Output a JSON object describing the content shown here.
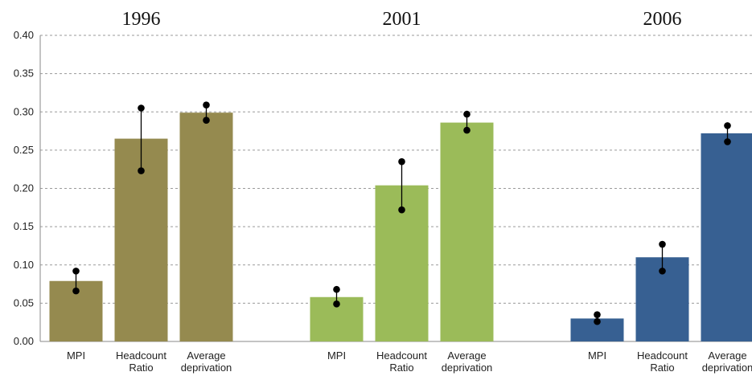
{
  "chart_data": {
    "type": "bar",
    "y_ticks": [
      "0.00",
      "0.05",
      "0.10",
      "0.15",
      "0.20",
      "0.25",
      "0.30",
      "0.35",
      "0.40"
    ],
    "ylim": [
      0,
      0.4
    ],
    "grid": true,
    "groups": [
      {
        "year": "1996",
        "color": "#958A4F",
        "bars": [
          {
            "label": [
              "MPI"
            ],
            "value": 0.079,
            "ci": [
              0.066,
              0.092
            ]
          },
          {
            "label": [
              "Headcount",
              "Ratio"
            ],
            "value": 0.265,
            "ci": [
              0.223,
              0.305
            ]
          },
          {
            "label": [
              "Average",
              "deprivation"
            ],
            "value": 0.299,
            "ci": [
              0.289,
              0.309
            ]
          }
        ]
      },
      {
        "year": "2001",
        "color": "#9BBB59",
        "bars": [
          {
            "label": [
              "MPI"
            ],
            "value": 0.058,
            "ci": [
              0.049,
              0.068
            ]
          },
          {
            "label": [
              "Headcount",
              "Ratio"
            ],
            "value": 0.204,
            "ci": [
              0.172,
              0.235
            ]
          },
          {
            "label": [
              "Average",
              "deprivation"
            ],
            "value": 0.286,
            "ci": [
              0.276,
              0.297
            ]
          }
        ]
      },
      {
        "year": "2006",
        "color": "#376092",
        "bars": [
          {
            "label": [
              "MPI"
            ],
            "value": 0.03,
            "ci": [
              0.026,
              0.035
            ]
          },
          {
            "label": [
              "Headcount",
              "Ratio"
            ],
            "value": 0.11,
            "ci": [
              0.092,
              0.127
            ]
          },
          {
            "label": [
              "Average",
              "deprivation"
            ],
            "value": 0.272,
            "ci": [
              0.261,
              0.282
            ]
          }
        ]
      }
    ]
  }
}
